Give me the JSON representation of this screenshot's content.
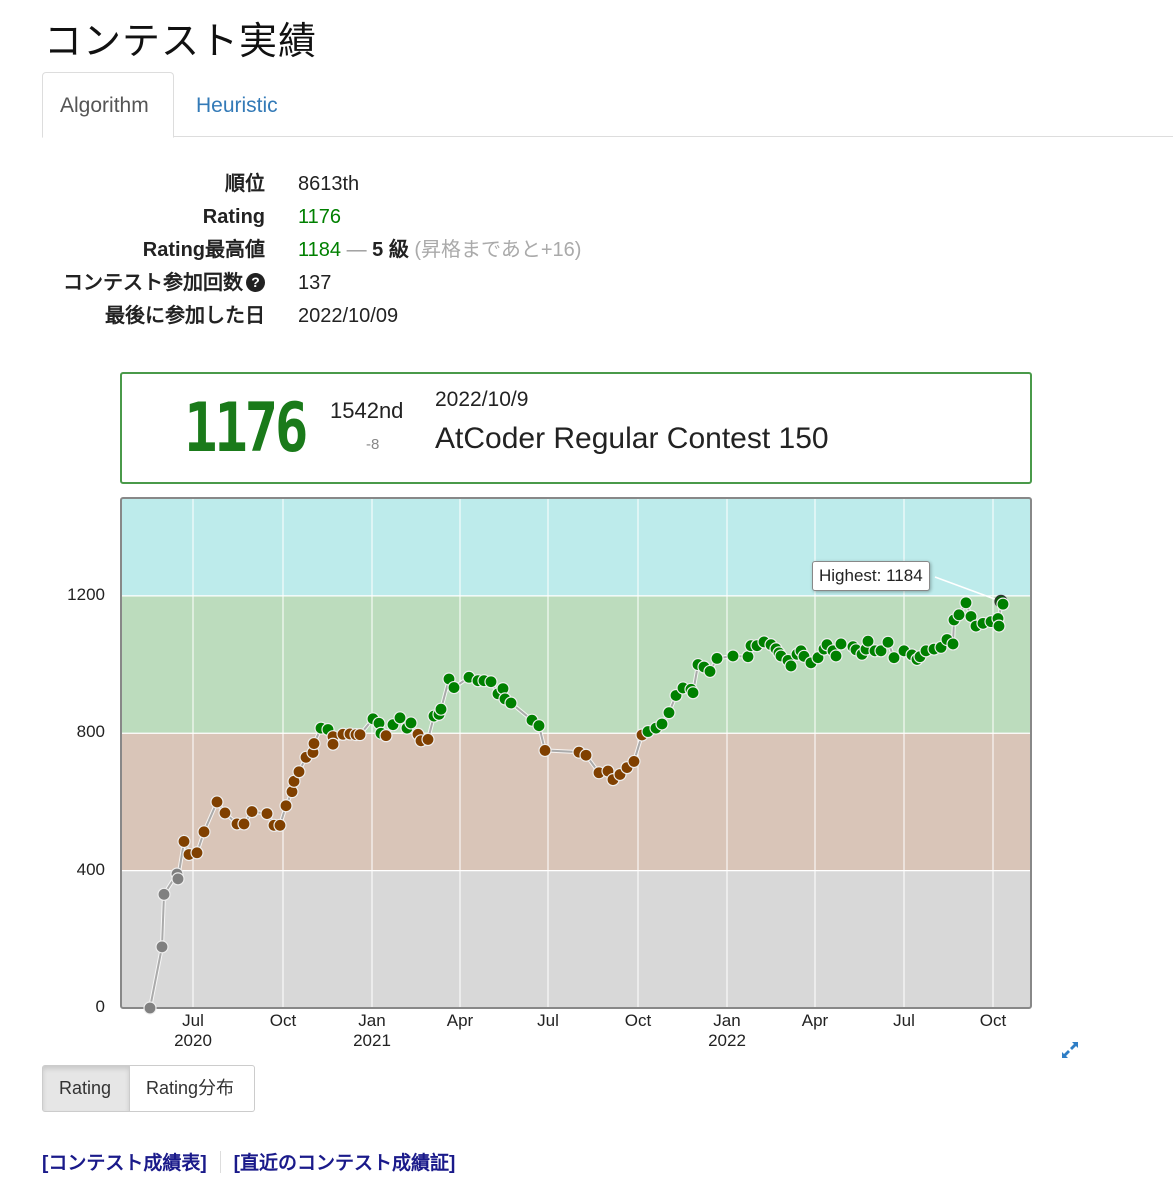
{
  "page": {
    "title": "コンテスト実績"
  },
  "tabs": [
    {
      "label": "Algorithm",
      "active": true
    },
    {
      "label": "Heuristic",
      "active": false
    }
  ],
  "stats": {
    "rank_label": "順位",
    "rank_value": "8613th",
    "rating_label": "Rating",
    "rating_value": "1176",
    "max_label": "Rating最高値",
    "max_value": "1184",
    "max_dash": "—",
    "max_kyu": "5 級",
    "max_note": "(昇格まであと+16)",
    "count_label": "コンテスト参加回数",
    "count_help_icon": "?",
    "count_value": "137",
    "last_label": "最後に参加した日",
    "last_value": "2022/10/09"
  },
  "contest_box": {
    "rating": "1176",
    "rank": "1542nd",
    "diff": "-8",
    "date": "2022/10/9",
    "name": "AtCoder Regular Contest 150"
  },
  "colors": {
    "band_gray": "#d8d8d8",
    "band_brown": "#d9c5b8",
    "band_green": "#bcdcbd",
    "band_cyan": "#bdebeb",
    "dot_gray": "#808080",
    "dot_brown": "#804000",
    "dot_green": "#008000",
    "accent_link": "#337ab7"
  },
  "chart_data": {
    "type": "line",
    "title": "",
    "xlabel": "",
    "ylabel": "Rating",
    "ylim": [
      0,
      1485
    ],
    "y_ticks": [
      "0",
      "400",
      "800",
      "1200"
    ],
    "x_ticks": [
      {
        "month": "Jul",
        "year": "2020"
      },
      {
        "month": "Oct",
        "year": ""
      },
      {
        "month": "Jan",
        "year": "2021"
      },
      {
        "month": "Apr",
        "year": ""
      },
      {
        "month": "Jul",
        "year": ""
      },
      {
        "month": "Oct",
        "year": ""
      },
      {
        "month": "Jan",
        "year": "2022"
      },
      {
        "month": "Apr",
        "year": ""
      },
      {
        "month": "Jul",
        "year": ""
      },
      {
        "month": "Oct",
        "year": ""
      }
    ],
    "bands": [
      {
        "from": 0,
        "to": 400,
        "color": "#d8d8d8",
        "name": "gray"
      },
      {
        "from": 400,
        "to": 800,
        "color": "#d9c5b8",
        "name": "brown"
      },
      {
        "from": 800,
        "to": 1200,
        "color": "#bcdcbd",
        "name": "green"
      },
      {
        "from": 1200,
        "to": 1485,
        "color": "#bdebeb",
        "name": "cyan"
      }
    ],
    "annotation": "Highest: 1184",
    "grid": true,
    "legend": "none",
    "x_positions_note": "x is horizontal position in px from plot left; Jul2020=72, Oct2020=162, Jan2021=251, Apr2021=339, Jul2021=427, Oct2021=517, Jan2022=606, Apr2022=694, Jul2022=783, Oct2022=872",
    "points": [
      [
        29,
        0
      ],
      [
        41,
        178
      ],
      [
        43,
        331
      ],
      [
        56,
        390
      ],
      [
        57,
        376
      ],
      [
        63,
        485
      ],
      [
        68,
        447
      ],
      [
        76,
        452
      ],
      [
        83,
        513
      ],
      [
        96,
        600
      ],
      [
        104,
        568
      ],
      [
        116,
        536
      ],
      [
        123,
        536
      ],
      [
        131,
        572
      ],
      [
        146,
        566
      ],
      [
        153,
        532
      ],
      [
        159,
        532
      ],
      [
        165,
        589
      ],
      [
        171,
        630
      ],
      [
        173,
        660
      ],
      [
        178,
        688
      ],
      [
        185,
        730
      ],
      [
        192,
        744
      ],
      [
        193,
        770
      ],
      [
        200,
        815
      ],
      [
        207,
        811
      ],
      [
        212,
        790
      ],
      [
        212,
        768
      ],
      [
        222,
        797
      ],
      [
        229,
        798
      ],
      [
        235,
        796
      ],
      [
        239,
        796
      ],
      [
        252,
        842
      ],
      [
        258,
        829
      ],
      [
        260,
        800
      ],
      [
        265,
        793
      ],
      [
        272,
        825
      ],
      [
        279,
        845
      ],
      [
        286,
        815
      ],
      [
        290,
        830
      ],
      [
        297,
        797
      ],
      [
        300,
        778
      ],
      [
        307,
        782
      ],
      [
        313,
        850
      ],
      [
        318,
        855
      ],
      [
        320,
        870
      ],
      [
        328,
        958
      ],
      [
        333,
        933
      ],
      [
        348,
        963
      ],
      [
        357,
        953
      ],
      [
        363,
        953
      ],
      [
        370,
        950
      ],
      [
        377,
        915
      ],
      [
        382,
        930
      ],
      [
        384,
        900
      ],
      [
        390,
        888
      ],
      [
        411,
        838
      ],
      [
        418,
        822
      ],
      [
        424,
        750
      ],
      [
        458,
        745
      ],
      [
        465,
        736
      ],
      [
        478,
        685
      ],
      [
        487,
        690
      ],
      [
        492,
        665
      ],
      [
        499,
        680
      ],
      [
        506,
        700
      ],
      [
        513,
        718
      ],
      [
        521,
        795
      ],
      [
        527,
        805
      ],
      [
        535,
        815
      ],
      [
        541,
        827
      ],
      [
        548,
        860
      ],
      [
        555,
        910
      ],
      [
        562,
        932
      ],
      [
        570,
        928
      ],
      [
        572,
        918
      ],
      [
        577,
        1000
      ],
      [
        583,
        993
      ],
      [
        589,
        980
      ],
      [
        596,
        1018
      ],
      [
        612,
        1025
      ],
      [
        627,
        1023
      ],
      [
        630,
        1055
      ],
      [
        636,
        1055
      ],
      [
        643,
        1066
      ],
      [
        650,
        1058
      ],
      [
        655,
        1046
      ],
      [
        658,
        1034
      ],
      [
        660,
        1025
      ],
      [
        667,
        1012
      ],
      [
        670,
        996
      ],
      [
        676,
        1030
      ],
      [
        680,
        1040
      ],
      [
        683,
        1024
      ],
      [
        690,
        1005
      ],
      [
        697,
        1020
      ],
      [
        703,
        1045
      ],
      [
        706,
        1058
      ],
      [
        712,
        1040
      ],
      [
        715,
        1025
      ],
      [
        720,
        1060
      ],
      [
        732,
        1052
      ],
      [
        735,
        1043
      ],
      [
        741,
        1030
      ],
      [
        745,
        1045
      ],
      [
        747,
        1068
      ],
      [
        754,
        1040
      ],
      [
        760,
        1040
      ],
      [
        767,
        1065
      ],
      [
        773,
        1020
      ],
      [
        783,
        1040
      ],
      [
        791,
        1028
      ],
      [
        796,
        1015
      ],
      [
        799,
        1023
      ],
      [
        805,
        1040
      ],
      [
        813,
        1045
      ],
      [
        820,
        1050
      ],
      [
        826,
        1073
      ],
      [
        832,
        1060
      ],
      [
        833,
        1130
      ],
      [
        838,
        1145
      ],
      [
        845,
        1180
      ],
      [
        850,
        1140
      ],
      [
        855,
        1112
      ],
      [
        862,
        1120
      ],
      [
        870,
        1125
      ],
      [
        877,
        1134
      ],
      [
        878,
        1112
      ],
      [
        880,
        1184
      ],
      [
        882,
        1176
      ]
    ]
  },
  "chart_controls": {
    "buttons": [
      {
        "label": "Rating",
        "active": true
      },
      {
        "label": "Rating分布",
        "active": false
      }
    ],
    "expand_icon": "expand-arrows-icon"
  },
  "links": [
    {
      "label": "[コンテスト成績表]"
    },
    {
      "label": "[直近のコンテスト成績証]"
    }
  ]
}
